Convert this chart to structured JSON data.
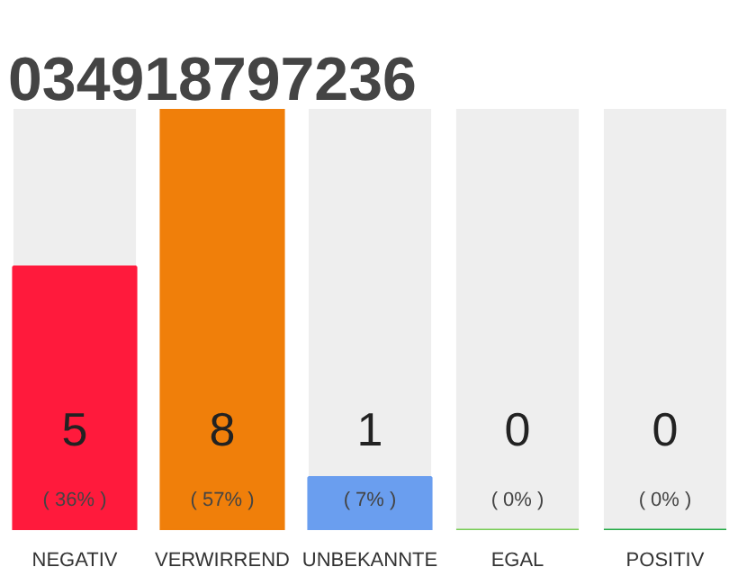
{
  "chart_data": {
    "type": "bar",
    "title": "034918797236",
    "categories": [
      "NEGATIV",
      "VERWIRREND",
      "UNBEKANNTE",
      "EGAL",
      "POSITIV"
    ],
    "values": [
      5,
      8,
      1,
      0,
      0
    ],
    "colors": [
      "#ff1a3c",
      "#f07f0a",
      "#6a9eef",
      "#77cc55",
      "#22aa44"
    ],
    "value_labels": [
      "5\n( 36% )",
      "8\n( 57% )",
      "1\n( 7% )",
      "0\n( 0% )",
      "0\n( 0% )"
    ],
    "ylim": [
      0,
      8
    ],
    "grid": false
  }
}
